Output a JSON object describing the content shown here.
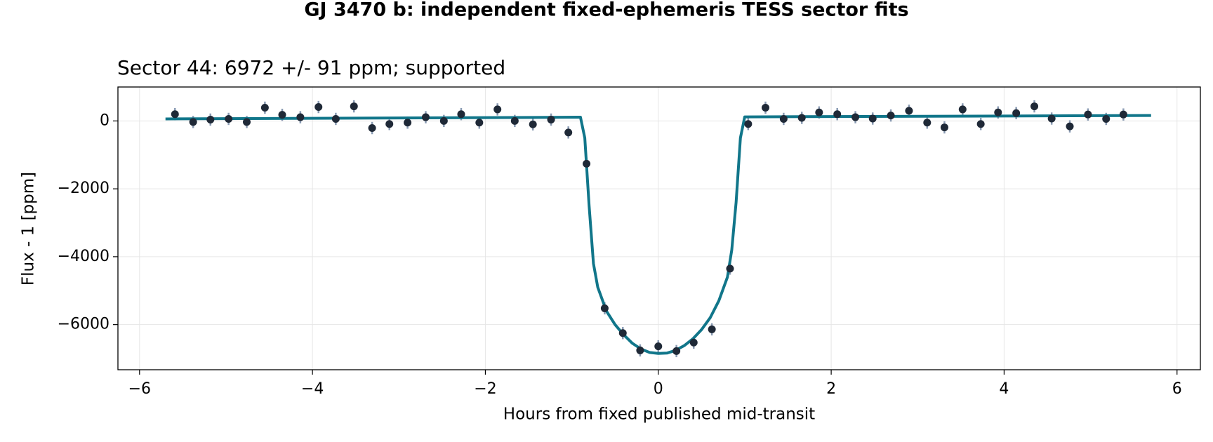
{
  "chart_data": {
    "type": "errorbar_line",
    "title": "GJ 3470 b: independent fixed-ephemeris TESS sector fits",
    "subtitle": "Sector 44: 6972 +/- 91 ppm; supported",
    "xlabel": "Hours from fixed published mid-transit",
    "ylabel": "Flux - 1 [ppm]",
    "xlim": [
      -6.25,
      6.27
    ],
    "ylim": [
      -7330,
      1000
    ],
    "xticks": [
      {
        "value": -6,
        "label": "−6"
      },
      {
        "value": -4,
        "label": "−4"
      },
      {
        "value": -2,
        "label": "−2"
      },
      0,
      2,
      4,
      6
    ],
    "yticks": [
      {
        "value": -6000,
        "label": "−6000"
      },
      {
        "value": -4000,
        "label": "−4000"
      },
      {
        "value": -2000,
        "label": "−2000"
      },
      0
    ],
    "grid": true,
    "points": {
      "color": "#1f2937",
      "error_color": "#8a9bb3",
      "x": [
        -5.59,
        -5.38,
        -5.18,
        -4.97,
        -4.76,
        -4.55,
        -4.35,
        -4.14,
        -3.93,
        -3.73,
        -3.52,
        -3.31,
        -3.11,
        -2.9,
        -2.69,
        -2.48,
        -2.28,
        -2.07,
        -1.86,
        -1.66,
        -1.45,
        -1.24,
        -1.04,
        -0.83,
        -0.62,
        -0.41,
        -0.21,
        0,
        0.21,
        0.41,
        0.62,
        0.83,
        1.04,
        1.24,
        1.45,
        1.66,
        1.86,
        2.07,
        2.28,
        2.48,
        2.69,
        2.9,
        3.11,
        3.31,
        3.52,
        3.73,
        3.93,
        4.14,
        4.35,
        4.55,
        4.76,
        4.97,
        5.18,
        5.38
      ],
      "values": [
        200,
        -30,
        40,
        60,
        -30,
        390,
        180,
        110,
        410,
        60,
        430,
        -210,
        -90,
        -50,
        110,
        0,
        200,
        -50,
        340,
        0,
        -100,
        40,
        -340,
        -1260,
        -5520,
        -6250,
        -6760,
        -6640,
        -6780,
        -6530,
        -6140,
        -4350,
        -90,
        390,
        60,
        90,
        250,
        200,
        110,
        70,
        160,
        300,
        -50,
        -190,
        340,
        -90,
        250,
        230,
        430,
        70,
        -160,
        190,
        60,
        190
      ],
      "errors": [
        180,
        180,
        180,
        180,
        180,
        180,
        180,
        180,
        180,
        180,
        180,
        180,
        180,
        180,
        180,
        180,
        180,
        180,
        180,
        180,
        180,
        180,
        180,
        180,
        180,
        180,
        180,
        180,
        180,
        180,
        180,
        180,
        180,
        180,
        180,
        180,
        180,
        180,
        180,
        180,
        180,
        180,
        180,
        180,
        180,
        180,
        180,
        180,
        180,
        180,
        180,
        180,
        180,
        180
      ]
    },
    "model": {
      "color": "#11768a",
      "x": [
        -5.7,
        -0.9,
        -0.85,
        -0.8,
        -0.75,
        -0.7,
        -0.6,
        -0.5,
        -0.4,
        -0.3,
        -0.2,
        -0.1,
        0,
        0.1,
        0.2,
        0.3,
        0.4,
        0.5,
        0.6,
        0.7,
        0.8,
        0.85,
        0.9,
        0.95,
        1.0,
        5.7
      ],
      "values": [
        60,
        110,
        -500,
        -2500,
        -4200,
        -4900,
        -5600,
        -6000,
        -6300,
        -6550,
        -6720,
        -6820,
        -6850,
        -6840,
        -6760,
        -6620,
        -6420,
        -6150,
        -5800,
        -5300,
        -4600,
        -3800,
        -2400,
        -500,
        120,
        160
      ]
    }
  }
}
